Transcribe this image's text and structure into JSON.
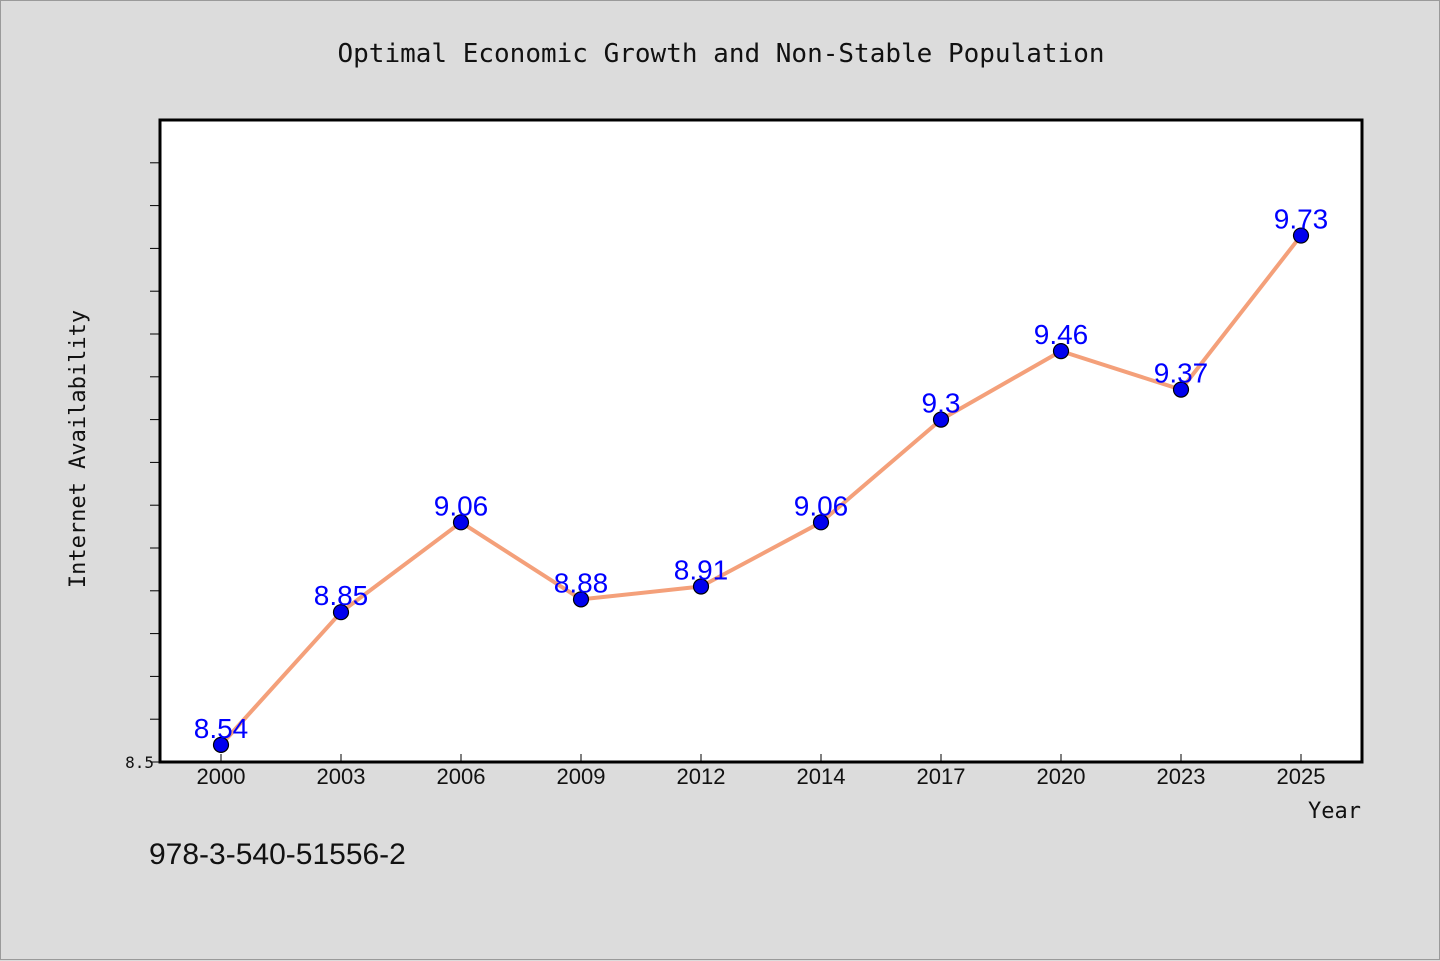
{
  "chart_data": {
    "type": "line",
    "title": "Optimal Economic Growth and Non-Stable Population",
    "xlabel": "Year",
    "ylabel": "Internet Availability",
    "categories": [
      "2000",
      "2003",
      "2006",
      "2009",
      "2012",
      "2014",
      "2017",
      "2020",
      "2023",
      "2025"
    ],
    "series": [
      {
        "values": [
          8.54,
          8.85,
          9.06,
          8.88,
          8.91,
          9.06,
          9.3,
          9.46,
          9.37,
          9.73
        ],
        "data_labels": [
          "8.54",
          "8.85",
          "9.06",
          "8.88",
          "8.91",
          "9.06",
          "9.3",
          "9.46",
          "9.37",
          "9.73"
        ],
        "line_color": "#f4a07a",
        "marker_color": "#0000ee"
      }
    ],
    "ylim": [
      8.5,
      10.0
    ],
    "yticks_labeled": [
      "8.5"
    ],
    "grid": false,
    "legend": "none",
    "label_color": "#0000ff"
  },
  "footer_text": "978-3-540-51556-2",
  "colors": {
    "background": "#dcdcdc",
    "plot_area": "#ffffff",
    "axis": "#000000"
  }
}
